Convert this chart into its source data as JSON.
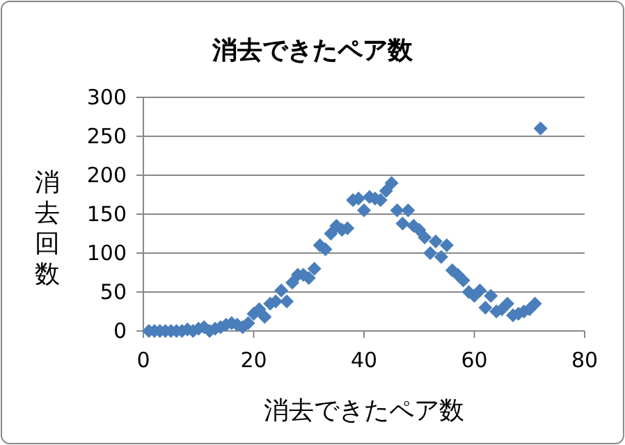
{
  "chart_data": {
    "type": "scatter",
    "title": "消去できたペア数",
    "xlabel": "消去できたペア数",
    "ylabel": "消去回数",
    "x": [
      1,
      2,
      3,
      4,
      5,
      6,
      7,
      8,
      9,
      10,
      11,
      12,
      13,
      14,
      15,
      16,
      17,
      18,
      19,
      20,
      21,
      22,
      23,
      24,
      25,
      26,
      27,
      28,
      29,
      30,
      31,
      32,
      33,
      34,
      35,
      36,
      37,
      38,
      39,
      40,
      41,
      42,
      43,
      44,
      45,
      46,
      47,
      48,
      49,
      50,
      51,
      52,
      53,
      54,
      55,
      56,
      57,
      58,
      59,
      60,
      61,
      62,
      63,
      64,
      65,
      66,
      67,
      68,
      69,
      70,
      71,
      72
    ],
    "series": [
      {
        "color": "#4a7ebb",
        "values": [
          0,
          0,
          0,
          0,
          0,
          0,
          0,
          2,
          0,
          3,
          5,
          0,
          3,
          5,
          8,
          10,
          8,
          5,
          10,
          22,
          28,
          18,
          35,
          38,
          52,
          38,
          62,
          72,
          72,
          68,
          80,
          110,
          105,
          125,
          135,
          130,
          132,
          168,
          170,
          155,
          172,
          170,
          168,
          180,
          190,
          155,
          138,
          155,
          135,
          130,
          120,
          100,
          115,
          95,
          110,
          78,
          72,
          65,
          50,
          45,
          52,
          30,
          45,
          25,
          28,
          35,
          20,
          22,
          25,
          28,
          35,
          260
        ]
      }
    ],
    "xlim": [
      0,
      80
    ],
    "xticks": [
      0,
      20,
      40,
      60,
      80
    ],
    "ylim": [
      0,
      300
    ],
    "yticks": [
      0,
      50,
      100,
      150,
      200,
      250,
      300
    ],
    "grid": "y",
    "marker": "diamond"
  }
}
